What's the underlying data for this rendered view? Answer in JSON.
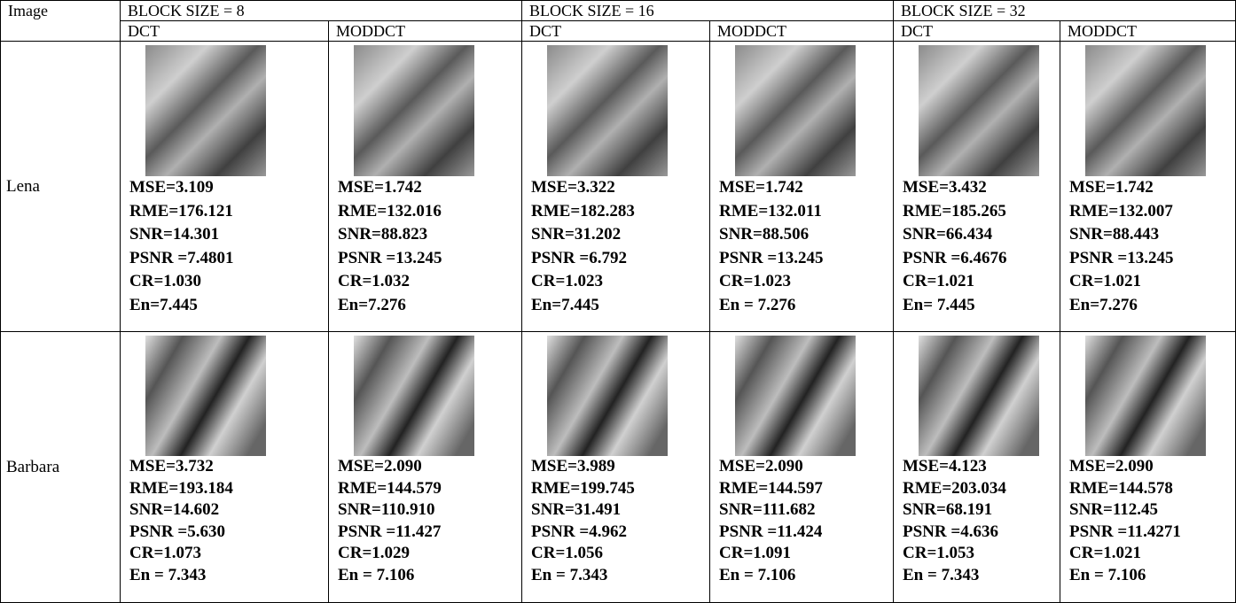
{
  "table": {
    "header": [
      "Image",
      "BLOCK SIZE = 8",
      "BLOCK SIZE = 16",
      "BLOCK SIZE = 32"
    ],
    "subheader": [
      "DCT",
      "MODDCT",
      "DCT",
      "MODDCT",
      "DCT",
      "MODDCT"
    ],
    "rows": [
      {
        "name": "Lena",
        "cells": [
          [
            "MSE=3.109",
            "RME=176.121",
            "SNR=14.301",
            "PSNR =7.4801",
            "CR=1.030",
            "En=7.445"
          ],
          [
            "MSE=1.742",
            "RME=132.016",
            "SNR=88.823",
            "PSNR =13.245",
            "CR=1.032",
            "En=7.276"
          ],
          [
            "MSE=3.322",
            "RME=182.283",
            "SNR=31.202",
            "PSNR =6.792",
            "CR=1.023",
            "En=7.445"
          ],
          [
            "MSE=1.742",
            "RME=132.011",
            "SNR=88.506",
            "PSNR =13.245",
            "CR=1.023",
            "En = 7.276"
          ],
          [
            "MSE=3.432",
            "RME=185.265",
            "SNR=66.434",
            "PSNR =6.4676",
            "CR=1.021",
            "En= 7.445"
          ],
          [
            "MSE=1.742",
            "RME=132.007",
            "SNR=88.443",
            "PSNR =13.245",
            "CR=1.021",
            "En=7.276"
          ]
        ]
      },
      {
        "name": "Barbara",
        "cells": [
          [
            "MSE=3.732",
            "RME=193.184",
            "SNR=14.602",
            "PSNR =5.630",
            "CR=1.073",
            "En = 7.343"
          ],
          [
            "MSE=2.090",
            "RME=144.579",
            "SNR=110.910",
            "PSNR =11.427",
            "CR=1.029",
            "En = 7.106"
          ],
          [
            "MSE=3.989",
            "RME=199.745",
            "SNR=31.491",
            "PSNR =4.962",
            "CR=1.056",
            "En = 7.343"
          ],
          [
            "MSE=2.090",
            "RME=144.597",
            "SNR=111.682",
            "PSNR =11.424",
            "CR=1.091",
            "En = 7.106"
          ],
          [
            "MSE=4.123",
            "RME=203.034",
            "SNR=68.191",
            "PSNR =4.636",
            "CR=1.053",
            "En = 7.343"
          ],
          [
            "MSE=2.090",
            "RME=144.578",
            "SNR=112.45",
            "PSNR =11.4271",
            "CR=1.021",
            "En = 7.106"
          ]
        ]
      }
    ]
  }
}
